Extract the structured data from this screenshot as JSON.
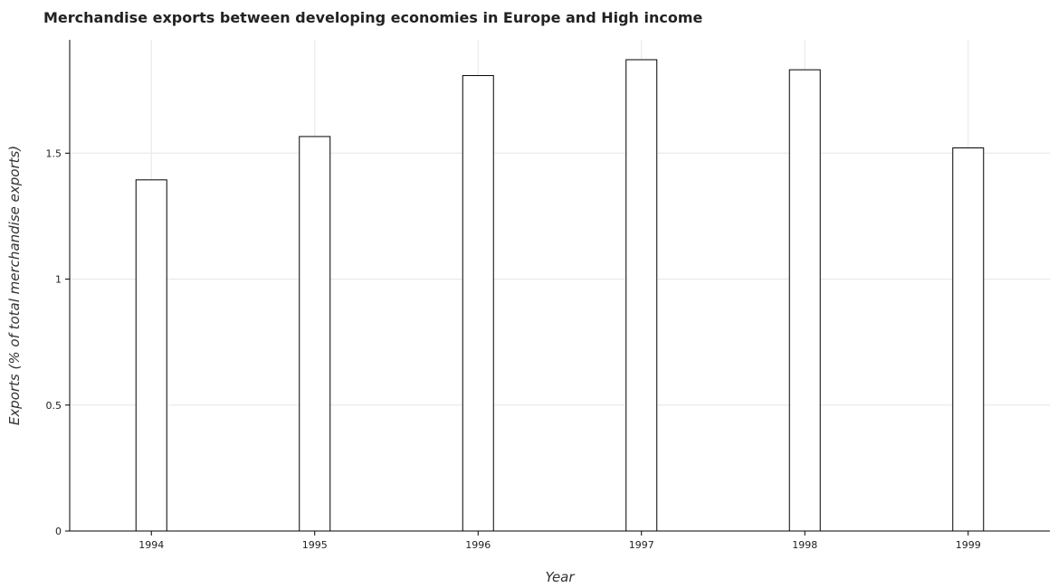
{
  "chart_data": {
    "type": "bar",
    "title": "Merchandise exports between developing economies in Europe and High income",
    "xlabel": "Year",
    "ylabel": "Exports (% of total merchandise exports)",
    "categories": [
      "1994",
      "1995",
      "1996",
      "1997",
      "1998",
      "1999"
    ],
    "values": [
      1.394,
      1.566,
      1.808,
      1.871,
      1.831,
      1.521
    ],
    "ylim": [
      0,
      1.95
    ],
    "yticks": [
      0,
      0.5,
      1,
      1.5
    ],
    "ytick_labels": [
      "0",
      "0.5",
      "1",
      "1.5"
    ],
    "grid": true,
    "bar_color": "#ffffff",
    "bar_edge_color": "#000000"
  }
}
